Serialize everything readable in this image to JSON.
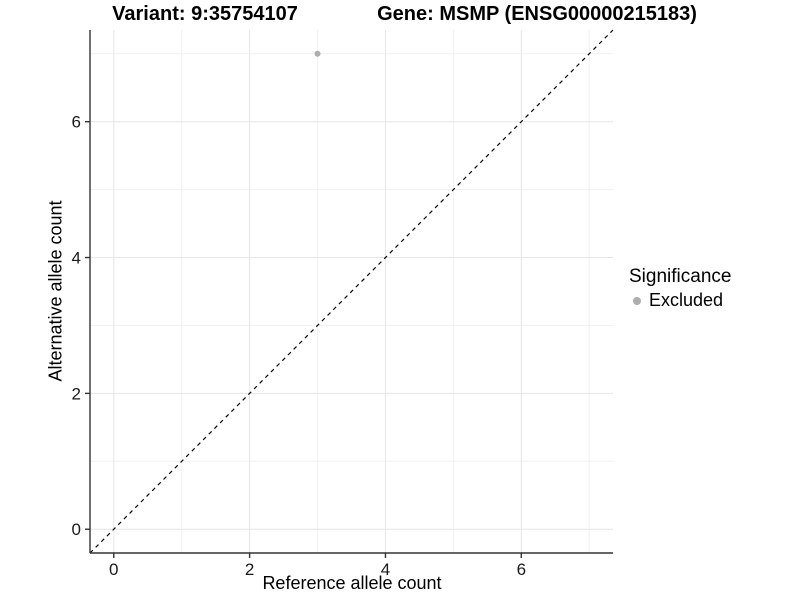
{
  "chart_data": {
    "type": "scatter",
    "title_left": "Variant: 9:35754107",
    "title_right": "Gene: MSMP (ENSG00000215183)",
    "xlabel": "Reference allele count",
    "ylabel": "Alternative allele count",
    "xlim": [
      -0.35,
      7.35
    ],
    "ylim": [
      -0.35,
      7.35
    ],
    "xticks": [
      0,
      2,
      4,
      6
    ],
    "yticks": [
      0,
      2,
      4,
      6
    ],
    "x_minor_ticks": [
      1,
      3,
      5,
      7
    ],
    "y_minor_ticks": [
      1,
      3,
      5,
      7
    ],
    "grid": "major+minor",
    "legend": {
      "position": "right",
      "title": "Significance",
      "entries": [
        {
          "label": "Excluded",
          "color": "#aeaeae"
        }
      ]
    },
    "series": [
      {
        "name": "Excluded",
        "color": "#aeaeae",
        "points": [
          {
            "x": 3,
            "y": 7
          }
        ]
      }
    ],
    "reference_line": {
      "shape": "y=x",
      "style": "dashed",
      "color": "#000000"
    }
  },
  "style": {
    "background": "#ffffff",
    "grid_major_color": "#e6e6e6",
    "grid_minor_color": "#f1f1f1",
    "axis_line_color": "#333333",
    "tick_color": "#333333",
    "tick_label_color": "#1a1a1a",
    "text_color": "#000000"
  }
}
